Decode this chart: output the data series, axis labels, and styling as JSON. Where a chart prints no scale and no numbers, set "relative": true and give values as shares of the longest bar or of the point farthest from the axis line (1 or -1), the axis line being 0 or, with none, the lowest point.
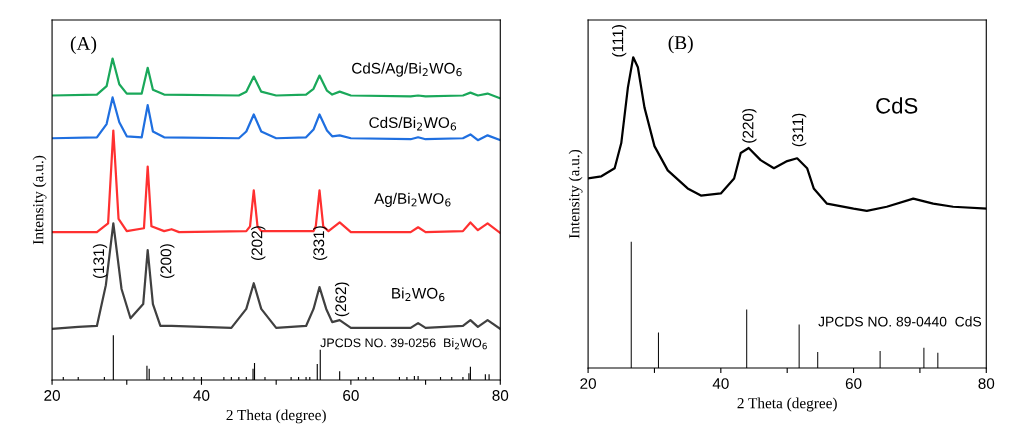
{
  "chart_data": [
    {
      "type": "line",
      "title": "(A)",
      "xlabel": "2 Theta (degree)",
      "ylabel": "Intensity (a.u.)",
      "relative": true,
      "xlim": [
        20,
        80
      ],
      "xticks": [
        20,
        {
          "value": 30,
          "label": null
        },
        40,
        {
          "value": 50,
          "label": null
        },
        60,
        {
          "value": 70,
          "label": null
        },
        80
      ],
      "grid": false,
      "legend": false,
      "series": [
        {
          "name": "CdS/Ag/Bi$_{2}$WO$_{6}$",
          "color": "#1aa85a",
          "x": [
            20,
            26,
            27.3,
            28.1,
            29,
            30,
            32,
            32.8,
            33.5,
            35,
            45,
            46,
            47,
            48,
            50,
            54,
            55,
            55.8,
            56.8,
            57.5,
            58.5,
            60,
            68,
            69,
            70,
            75,
            76,
            77,
            78.3,
            80
          ],
          "values": [
            0.885,
            0.888,
            0.914,
            1.0,
            0.92,
            0.891,
            0.891,
            0.971,
            0.903,
            0.888,
            0.885,
            0.897,
            0.944,
            0.897,
            0.885,
            0.888,
            0.906,
            0.947,
            0.9,
            0.888,
            0.897,
            0.885,
            0.882,
            0.885,
            0.882,
            0.885,
            0.894,
            0.885,
            0.891,
            0.876
          ]
        },
        {
          "name": "CdS/Bi$_{2}$WO$_{6}$",
          "color": "#1f6fe0",
          "x": [
            20,
            26,
            27.3,
            28.1,
            29,
            30,
            32,
            32.8,
            33.5,
            35,
            45,
            46,
            47,
            48,
            50,
            54,
            55,
            55.8,
            56.8,
            57.5,
            58.5,
            60,
            68,
            69,
            70,
            75,
            76,
            77,
            78.3,
            80
          ],
          "values": [
            0.752,
            0.755,
            0.796,
            0.879,
            0.802,
            0.758,
            0.755,
            0.855,
            0.773,
            0.755,
            0.752,
            0.773,
            0.826,
            0.773,
            0.752,
            0.755,
            0.779,
            0.826,
            0.776,
            0.758,
            0.761,
            0.752,
            0.749,
            0.755,
            0.749,
            0.752,
            0.764,
            0.746,
            0.761,
            0.746
          ]
        },
        {
          "name": "Ag/Bi$_{2}$WO$_{6}$",
          "color": "#ff3030",
          "x": [
            20,
            26,
            27.5,
            28.2,
            28.9,
            30,
            32.3,
            32.8,
            33.3,
            35,
            36,
            37,
            46,
            46.5,
            47,
            47.5,
            48,
            55,
            55.3,
            55.8,
            56.3,
            57,
            58.5,
            60,
            68,
            69,
            70,
            75,
            76,
            77,
            78.3,
            80
          ],
          "values": [
            0.46,
            0.46,
            0.487,
            0.776,
            0.501,
            0.463,
            0.472,
            0.664,
            0.478,
            0.463,
            0.469,
            0.46,
            0.463,
            0.478,
            0.59,
            0.478,
            0.463,
            0.463,
            0.478,
            0.59,
            0.478,
            0.463,
            0.49,
            0.46,
            0.46,
            0.475,
            0.46,
            0.463,
            0.49,
            0.466,
            0.487,
            0.457
          ]
        },
        {
          "name": "Bi$_{2}$WO$_{6}$",
          "color": "#404040",
          "x": [
            20,
            23.5,
            26,
            27.2,
            28.2,
            29.3,
            30.5,
            32.2,
            32.8,
            33.5,
            34.5,
            36,
            44,
            46,
            47,
            48,
            50,
            54,
            55,
            55.8,
            56.7,
            57.5,
            58.5,
            60,
            68,
            69,
            70,
            75,
            76,
            77,
            78.3,
            80
          ],
          "values": [
            0.159,
            0.165,
            0.168,
            0.295,
            0.487,
            0.283,
            0.192,
            0.236,
            0.404,
            0.236,
            0.168,
            0.168,
            0.162,
            0.221,
            0.301,
            0.221,
            0.162,
            0.168,
            0.221,
            0.289,
            0.221,
            0.18,
            0.186,
            0.162,
            0.162,
            0.177,
            0.162,
            0.168,
            0.186,
            0.165,
            0.186,
            0.159
          ]
        },
        {
          "type": "bar",
          "color": "#000000",
          "x": [
            21.5,
            23.5,
            27,
            28.2,
            32.7,
            33,
            35,
            36,
            37.5,
            39,
            40,
            43,
            44,
            45,
            46,
            46.9,
            47.1,
            48.5,
            52,
            53,
            54,
            54.5,
            55.5,
            55.9,
            58.5,
            61,
            62,
            63,
            66.5,
            67.5,
            68.5,
            69,
            72,
            73.5,
            75,
            75.8,
            76,
            78,
            78.5
          ],
          "values": [
            0.009,
            0.009,
            0.009,
            0.139,
            0.044,
            0.035,
            0.009,
            0.009,
            0.009,
            0.009,
            0.009,
            0.009,
            0.009,
            0.009,
            0.009,
            0.035,
            0.053,
            0.009,
            0.009,
            0.009,
            0.009,
            0.009,
            0.05,
            0.094,
            0.027,
            0.009,
            0.009,
            0.009,
            0.009,
            0.009,
            0.012,
            0.012,
            0.009,
            0.009,
            0.009,
            0.021,
            0.041,
            0.018,
            0.018
          ]
        }
      ],
      "annotations": [
        "(131)",
        "(200)",
        "(202)",
        "(331)",
        "(262)",
        "JPCDS NO. 39-0256  Bi$_{2}$WO$_{6}$"
      ]
    },
    {
      "type": "line",
      "title": "(B)",
      "xlabel": "2 Theta (degree)",
      "ylabel": "Intensity (a.u.)",
      "relative": true,
      "xlim": [
        20,
        80
      ],
      "xticks": [
        20,
        {
          "value": 30,
          "label": null
        },
        40,
        {
          "value": 50,
          "label": null
        },
        60,
        {
          "value": 70,
          "label": null
        },
        80
      ],
      "grid": false,
      "legend": false,
      "series": [
        {
          "name": "CdS",
          "color": "#000000",
          "x": [
            20,
            22,
            24,
            25,
            26,
            26.8,
            27.5,
            28.5,
            30,
            32,
            35,
            37,
            40,
            42,
            43,
            44.2,
            46,
            48,
            50,
            51.5,
            53,
            54,
            56,
            60,
            62,
            65,
            69,
            72,
            75,
            80
          ],
          "values": [
            0.61,
            0.617,
            0.643,
            0.724,
            0.903,
            1.0,
            0.968,
            0.838,
            0.714,
            0.636,
            0.578,
            0.555,
            0.562,
            0.61,
            0.692,
            0.708,
            0.669,
            0.643,
            0.666,
            0.675,
            0.643,
            0.578,
            0.529,
            0.513,
            0.506,
            0.519,
            0.545,
            0.529,
            0.519,
            0.513
          ]
        },
        {
          "type": "bar",
          "color": "#000000",
          "x": [
            26.5,
            30.6,
            43.9,
            51.8,
            54.6,
            64,
            70.6,
            72.7
          ],
          "values": [
            0.406,
            0.114,
            0.188,
            0.14,
            0.052,
            0.055,
            0.065,
            0.049
          ]
        }
      ],
      "annotations": [
        "(111)",
        "(220)",
        "(311)",
        "JPCDS NO. 89-0440  CdS"
      ]
    }
  ]
}
